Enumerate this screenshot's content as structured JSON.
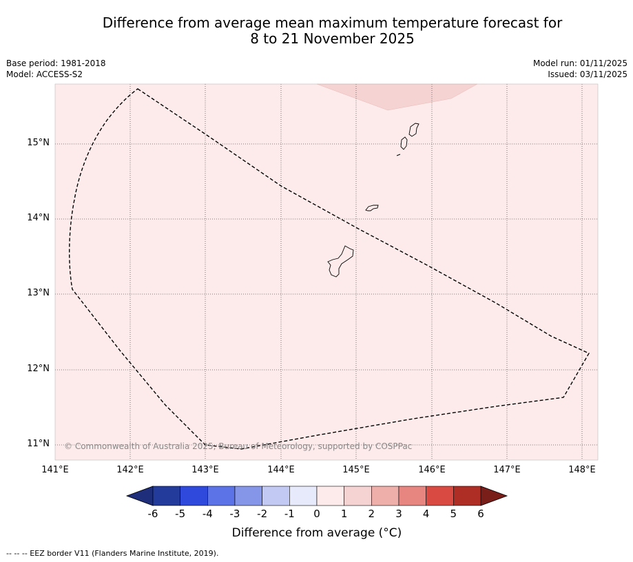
{
  "title_line1": "Difference from average mean maximum temperature forecast for",
  "title_line2": "8 to 21 November 2025",
  "base_period": "Base period: 1981-2018",
  "model": "Model: ACCESS-S2",
  "model_run": "Model run: 01/11/2025",
  "issued": "Issued: 03/11/2025",
  "copyright": "© Commonwealth of Australia 2025, Bureau of Meteorology, supported by COSPPac",
  "footer": "--  --  -- EEZ border V11 (Flanders Marine Institute, 2019).",
  "map": {
    "lon_range": [
      141,
      148.2
    ],
    "lat_range": [
      10.8,
      15.8
    ],
    "lon_labels": [
      "141°E",
      "142°E",
      "143°E",
      "144°E",
      "145°E",
      "146°E",
      "147°E",
      "148°E"
    ],
    "lat_labels": [
      "15°N",
      "14°N",
      "13°N",
      "12°N",
      "11°N"
    ],
    "background_anomaly_category": "0 to 1",
    "patch_anomaly_category": "1 to 2"
  },
  "colorbar": {
    "title": "Difference from average (°C)",
    "tick_labels": [
      "-6",
      "-5",
      "-4",
      "-3",
      "-2",
      "-1",
      "0",
      "1",
      "2",
      "3",
      "4",
      "5",
      "6"
    ],
    "colors": [
      "#233b9a",
      "#2e49dc",
      "#5b73e6",
      "#8595e8",
      "#c2c9f2",
      "#e6eafa",
      "#fcebea",
      "#f5d3d3",
      "#eeaeaa",
      "#e78580",
      "#d94a42",
      "#ae2e26"
    ],
    "under_color": "#1e2e7a",
    "over_color": "#7a1e1a"
  }
}
